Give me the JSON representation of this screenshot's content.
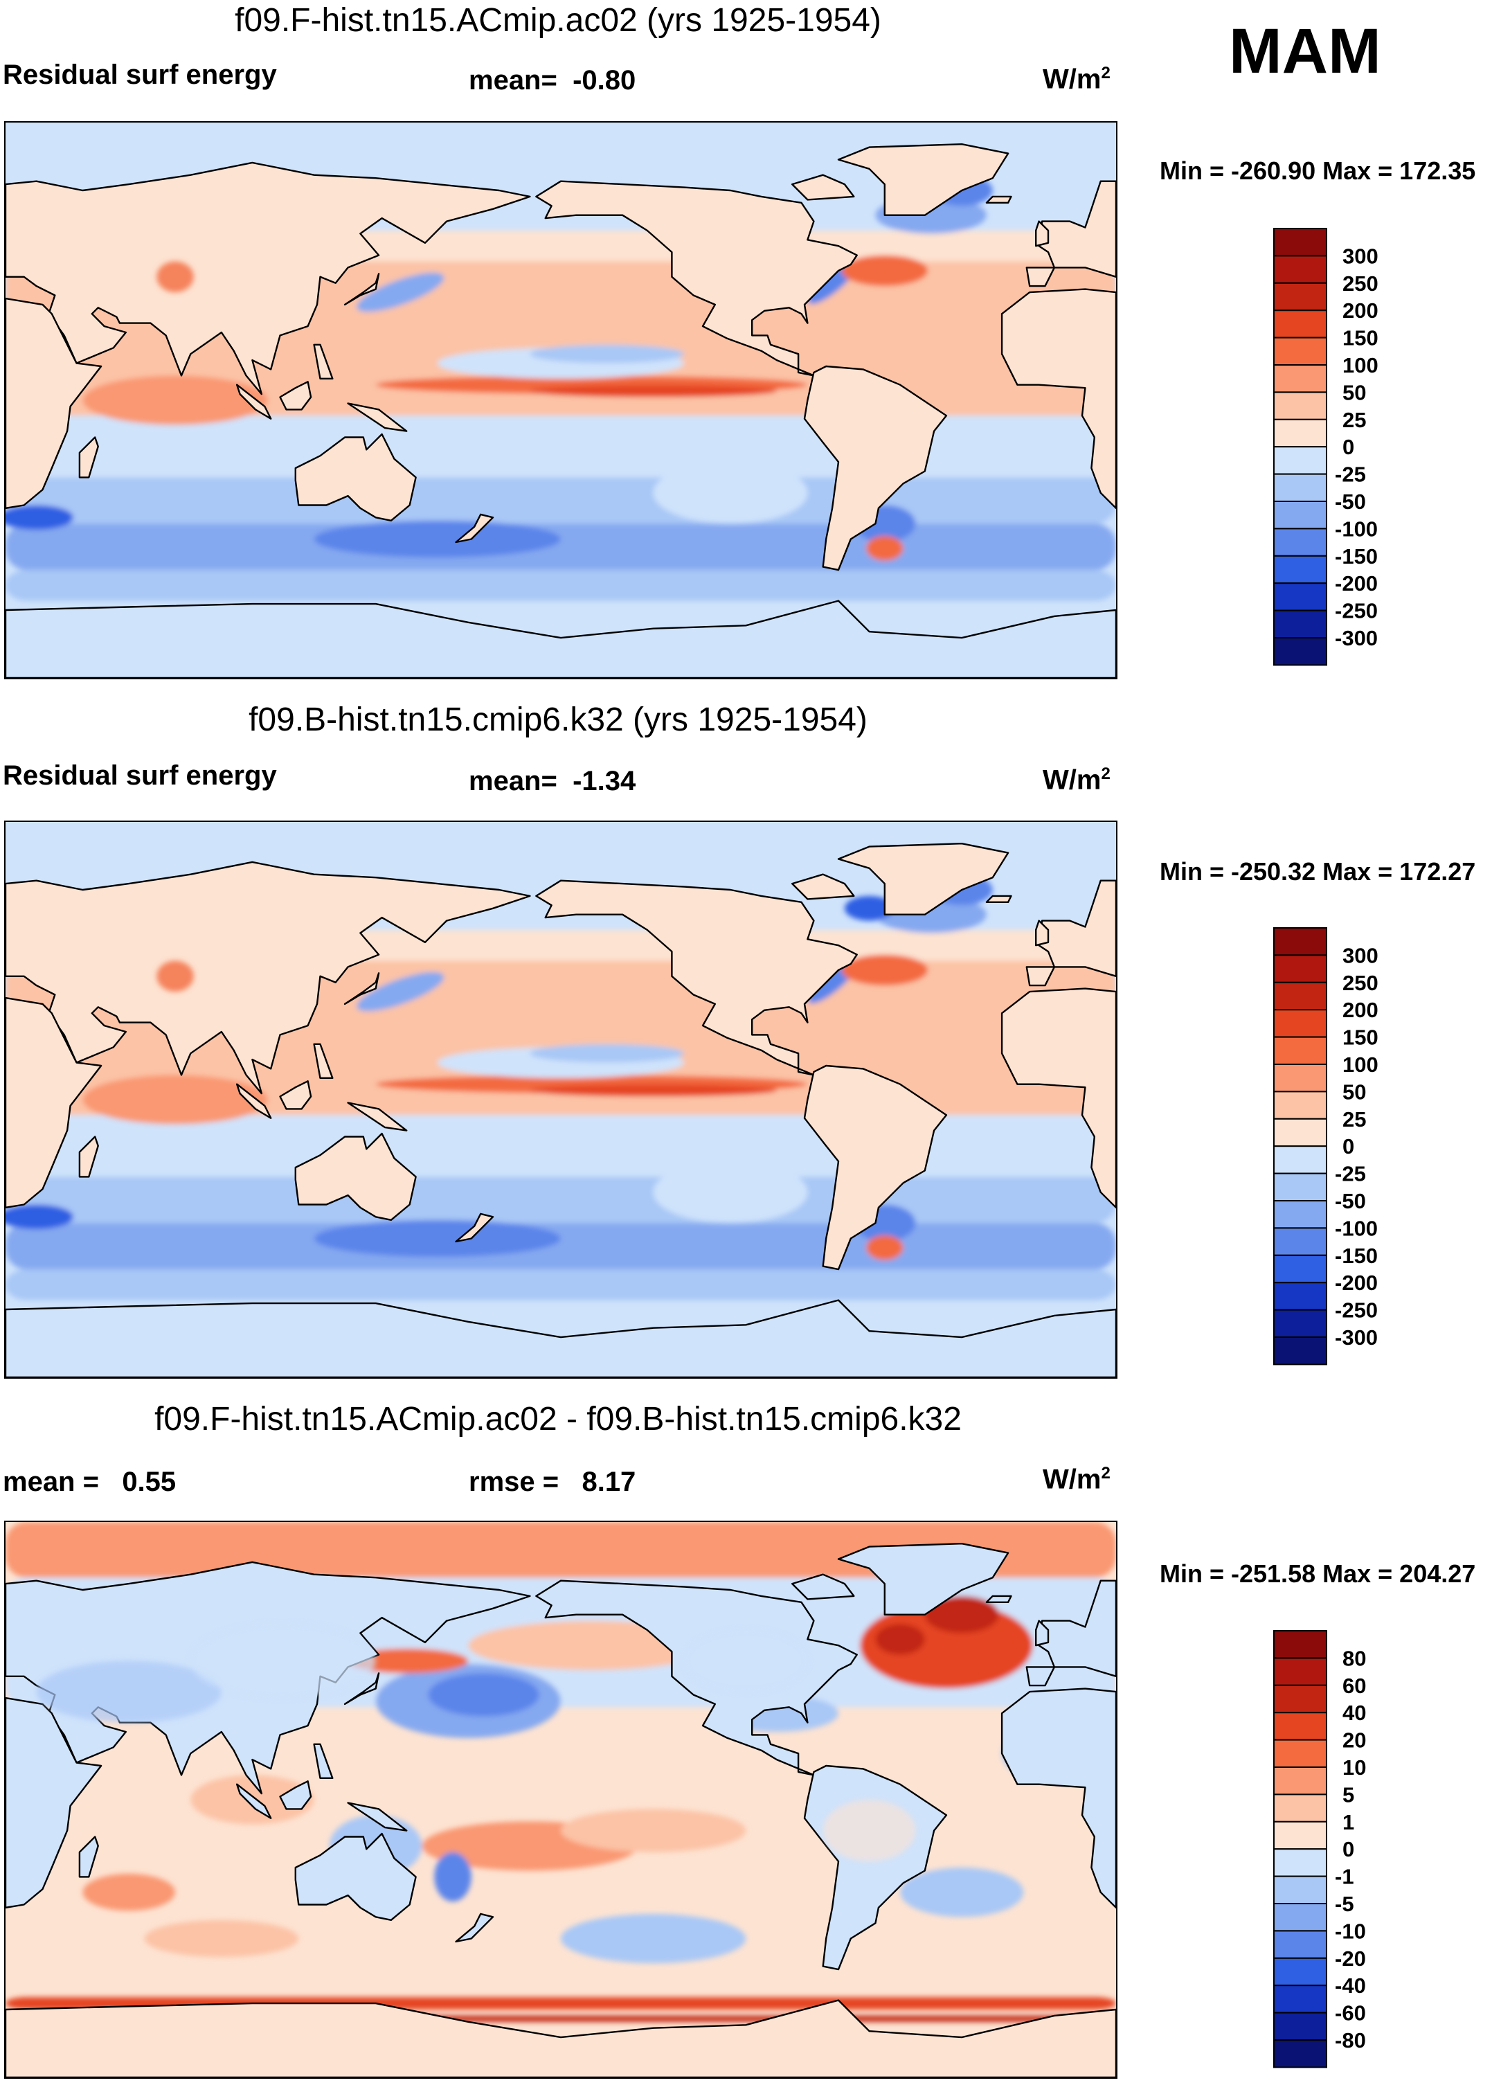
{
  "season": "MAM",
  "colors": {
    "ocean_base": "#cfe3fb",
    "pos": [
      "#fde3d2",
      "#fcc3a6",
      "#f99872",
      "#f36b3f",
      "#e54520",
      "#c22612",
      "#8b0a0a"
    ],
    "neg": [
      "#cfe3fb",
      "#a9c8f6",
      "#85a9f0",
      "#5c85ea",
      "#2f5fe3",
      "#1637c4",
      "#0d1f9a",
      "#0a1373"
    ],
    "coast": "#000000"
  },
  "panels": [
    {
      "title": "f09.F-hist.tn15.ACmip.ac02 (yrs 1925-1954)",
      "left_label": "Residual surf energy",
      "stat_label": "mean=",
      "stat_value": "-0.80",
      "stat2_label": "",
      "stat2_value": "",
      "unit_base": "W/m",
      "unit_exp": "2",
      "min_max": "Min = -260.90 Max = 172.35",
      "colorbar_labels": [
        "300",
        "250",
        "200",
        "150",
        "100",
        "50",
        "25",
        "0",
        "-25",
        "-50",
        "-100",
        "-150",
        "-200",
        "-250",
        "-300"
      ],
      "map_description": "Residual surface energy field, CAM AMIP run"
    },
    {
      "title": "f09.B-hist.tn15.cmip6.k32 (yrs 1925-1954)",
      "left_label": "Residual surf energy",
      "stat_label": "mean=",
      "stat_value": "-1.34",
      "stat2_label": "",
      "stat2_value": "",
      "unit_base": "W/m",
      "unit_exp": "2",
      "min_max": "Min = -250.32 Max = 172.27",
      "colorbar_labels": [
        "300",
        "250",
        "200",
        "150",
        "100",
        "50",
        "25",
        "0",
        "-25",
        "-50",
        "-100",
        "-150",
        "-200",
        "-250",
        "-300"
      ],
      "map_description": "Residual surface energy field, coupled run"
    },
    {
      "title": "f09.F-hist.tn15.ACmip.ac02 - f09.B-hist.tn15.cmip6.k32",
      "left_label": "mean =",
      "stat_label": "",
      "stat_value": "0.55",
      "stat2_label": "rmse =",
      "stat2_value": "8.17",
      "unit_base": "W/m",
      "unit_exp": "2",
      "min_max": "Min = -251.58 Max = 204.27",
      "colorbar_labels": [
        "80",
        "60",
        "40",
        "20",
        "10",
        "5",
        "1",
        "0",
        "-1",
        "-5",
        "-10",
        "-20",
        "-40",
        "-60",
        "-80"
      ],
      "map_description": "Difference field"
    }
  ]
}
